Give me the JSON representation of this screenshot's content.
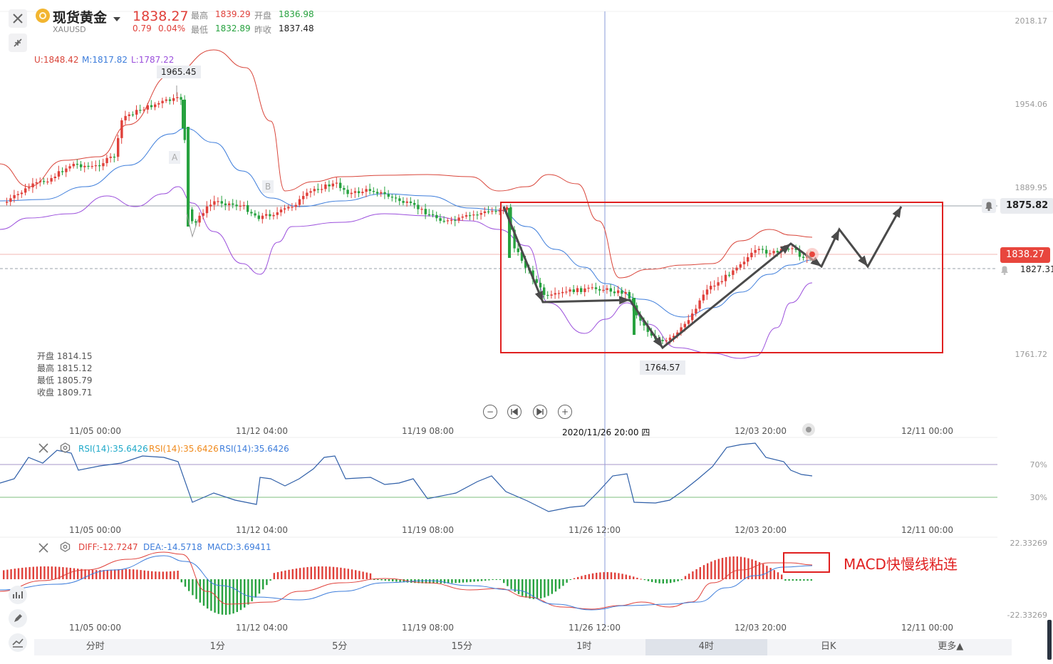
{
  "header": {
    "title": "现货黄金",
    "symbol": "XAUUSD",
    "price": "1838.27",
    "change": "0.79",
    "change_pct": "0.04%",
    "high_label": "最高",
    "high": "1839.29",
    "open_label": "开盘",
    "open": "1836.98",
    "low_label": "最低",
    "low": "1832.89",
    "prev_label": "昨收",
    "prev": "1837.48"
  },
  "boll": {
    "upper": "U:1848.42",
    "middle": "M:1817.82",
    "lower": "L:1787.22"
  },
  "price_axis": [
    "2018.17",
    "1954.06",
    "1889.95",
    "1761.72"
  ],
  "price_tags": {
    "line": "1875.82",
    "current": "1838.27",
    "alert": "1827.31"
  },
  "markers": {
    "peak": "1965.45",
    "trough": "1764.57",
    "a": "A",
    "b": "B"
  },
  "ohlc_box": [
    {
      "label": "开盘",
      "value": "1814.15"
    },
    {
      "label": "最高",
      "value": "1815.12"
    },
    {
      "label": "最低",
      "value": "1805.79"
    },
    {
      "label": "收盘",
      "value": "1809.71"
    }
  ],
  "main_times": [
    "11/05 00:00",
    "11/12 04:00",
    "11/19 08:00",
    "2020/11/26 20:00 四",
    "12/03 20:00",
    "12/11 00:00"
  ],
  "rsi": {
    "labels": [
      "RSI(14):35.6426",
      "RSI(14):35.6426",
      "RSI(14):35.6426"
    ],
    "levels": [
      "70%",
      "30%"
    ]
  },
  "sub_times": [
    "11/05 00:00",
    "11/12 04:00",
    "11/19 08:00",
    "11/26 12:00",
    "12/03 20:00",
    "12/11 00:00"
  ],
  "macd": {
    "diff": "DIFF:-12.7247",
    "dea": "DEA:-14.5718",
    "macd": "MACD:3.69411",
    "top": "22.33269",
    "bottom": "-22.33269"
  },
  "annotation": "MACD快慢线粘连",
  "tabs": [
    "分时",
    "1分",
    "5分",
    "15分",
    "1时",
    "4时",
    "日K",
    "更多▲"
  ],
  "active_tab": "4时",
  "colors": {
    "up": "#e0403a",
    "down": "#27a23f",
    "boll_upper": "#d9453a",
    "boll_mid": "#3d7ddb",
    "boll_lower": "#9b4fdc",
    "box": "#e02020"
  }
}
